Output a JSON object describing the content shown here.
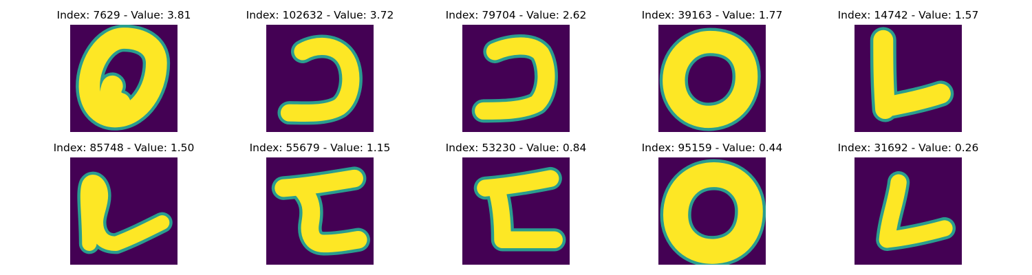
{
  "colors": {
    "background": "#440154",
    "edge": "#2a9d8f",
    "stroke": "#fde725"
  },
  "panels": [
    {
      "title": "Index: 7629 - Value: 3.81",
      "glyph": "zero-tall"
    },
    {
      "title": "Index: 102632 - Value: 3.72",
      "glyph": "hook-right"
    },
    {
      "title": "Index: 79704 - Value: 2.62",
      "glyph": "hook-right-2"
    },
    {
      "title": "Index: 39163 - Value: 1.77",
      "glyph": "zero-round"
    },
    {
      "title": "Index: 14742 - Value: 1.57",
      "glyph": "L-shape"
    },
    {
      "title": "Index: 85748 - Value: 1.50",
      "glyph": "loop-L"
    },
    {
      "title": "Index: 55679 - Value: 1.15",
      "glyph": "C-angular"
    },
    {
      "title": "Index: 53230 - Value: 0.84",
      "glyph": "C-angular-2"
    },
    {
      "title": "Index: 95159 - Value: 0.44",
      "glyph": "zero-thick"
    },
    {
      "title": "Index: 31692 - Value: 0.26",
      "glyph": "L-shape-2"
    }
  ]
}
